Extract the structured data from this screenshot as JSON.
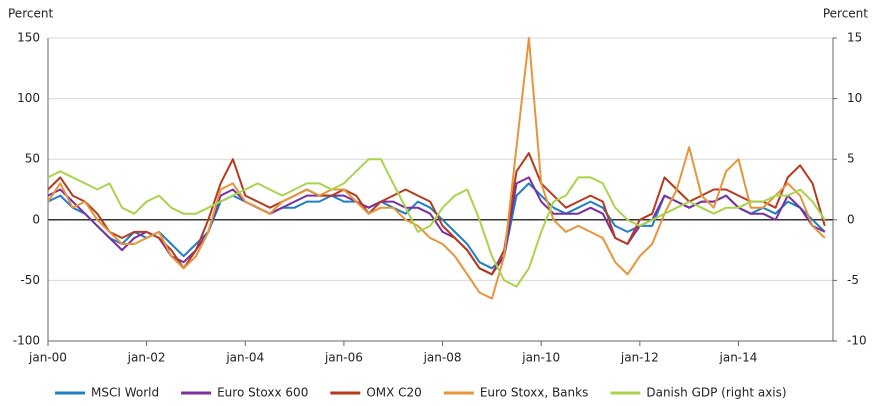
{
  "chart_data": {
    "type": "line",
    "y_label": "Percent",
    "y2_label": "Percent",
    "x": [
      "2000-01",
      "2000-04",
      "2000-07",
      "2000-10",
      "2001-01",
      "2001-04",
      "2001-07",
      "2001-10",
      "2002-01",
      "2002-04",
      "2002-07",
      "2002-10",
      "2003-01",
      "2003-04",
      "2003-07",
      "2003-10",
      "2004-01",
      "2004-04",
      "2004-07",
      "2004-10",
      "2005-01",
      "2005-04",
      "2005-07",
      "2005-10",
      "2006-01",
      "2006-04",
      "2006-07",
      "2006-10",
      "2007-01",
      "2007-04",
      "2007-07",
      "2007-10",
      "2008-01",
      "2008-04",
      "2008-07",
      "2008-10",
      "2009-01",
      "2009-04",
      "2009-07",
      "2009-10",
      "2010-01",
      "2010-04",
      "2010-07",
      "2010-10",
      "2011-01",
      "2011-04",
      "2011-07",
      "2011-10",
      "2012-01",
      "2012-04",
      "2012-07",
      "2012-10",
      "2013-01",
      "2013-04",
      "2013-07",
      "2013-10",
      "2014-01",
      "2014-04",
      "2014-07",
      "2014-10",
      "2015-01",
      "2015-04",
      "2015-07",
      "2015-10"
    ],
    "xlim": [
      "2000-01",
      "2015-12"
    ],
    "xticks": [
      {
        "value": "2000-01",
        "label": "jan-00"
      },
      {
        "value": "2002-01",
        "label": "jan-02"
      },
      {
        "value": "2004-01",
        "label": "jan-04"
      },
      {
        "value": "2006-01",
        "label": "jan-06"
      },
      {
        "value": "2008-01",
        "label": "jan-08"
      },
      {
        "value": "2010-01",
        "label": "jan-10"
      },
      {
        "value": "2012-01",
        "label": "jan-12"
      },
      {
        "value": "2014-01",
        "label": "jan-14"
      }
    ],
    "ylim": [
      -100,
      150
    ],
    "yticks": [
      -100,
      -50,
      0,
      50,
      100,
      150
    ],
    "y2lim": [
      -10,
      15
    ],
    "y2ticks": [
      -10,
      -5,
      0,
      5,
      10,
      15
    ],
    "grid": true,
    "legend": "bottom",
    "series": [
      {
        "name": "MSCI World",
        "color": "#1f7fc4",
        "values": [
          15,
          20,
          10,
          5,
          -5,
          -15,
          -20,
          -10,
          -15,
          -10,
          -20,
          -30,
          -20,
          -10,
          15,
          20,
          15,
          10,
          5,
          10,
          10,
          15,
          15,
          20,
          15,
          15,
          10,
          15,
          10,
          5,
          15,
          10,
          0,
          -10,
          -20,
          -35,
          -40,
          -30,
          20,
          30,
          20,
          10,
          5,
          10,
          15,
          10,
          -5,
          -10,
          -5,
          -5,
          20,
          15,
          10,
          15,
          15,
          20,
          10,
          5,
          10,
          5,
          15,
          10,
          0,
          -10
        ]
      },
      {
        "name": "Euro Stoxx 600",
        "color": "#7b2fa0",
        "values": [
          20,
          25,
          15,
          5,
          -5,
          -15,
          -25,
          -15,
          -10,
          -15,
          -30,
          -35,
          -25,
          -10,
          20,
          25,
          15,
          10,
          5,
          10,
          15,
          20,
          20,
          20,
          20,
          15,
          10,
          15,
          15,
          10,
          10,
          5,
          -10,
          -15,
          -25,
          -40,
          -45,
          -30,
          30,
          35,
          15,
          5,
          5,
          5,
          10,
          5,
          -15,
          -20,
          -5,
          0,
          20,
          15,
          10,
          15,
          15,
          20,
          10,
          5,
          5,
          0,
          20,
          10,
          -5,
          -10
        ]
      },
      {
        "name": "OMX C20",
        "color": "#b83a1e",
        "values": [
          25,
          35,
          20,
          15,
          5,
          -10,
          -15,
          -10,
          -10,
          -15,
          -25,
          -40,
          -25,
          0,
          30,
          50,
          20,
          15,
          10,
          15,
          20,
          25,
          20,
          20,
          25,
          20,
          5,
          15,
          20,
          25,
          20,
          15,
          -5,
          -15,
          -25,
          -40,
          -45,
          -25,
          40,
          55,
          30,
          20,
          10,
          15,
          20,
          15,
          -15,
          -20,
          0,
          5,
          35,
          25,
          15,
          20,
          25,
          25,
          20,
          15,
          15,
          10,
          35,
          45,
          30,
          -5
        ]
      },
      {
        "name": "Euro Stoxx, Banks",
        "color": "#e8943a",
        "values": [
          15,
          30,
          10,
          15,
          0,
          -10,
          -20,
          -20,
          -15,
          -10,
          -30,
          -40,
          -30,
          -10,
          25,
          30,
          15,
          10,
          5,
          15,
          20,
          25,
          20,
          25,
          25,
          15,
          5,
          10,
          10,
          0,
          -5,
          -15,
          -20,
          -30,
          -45,
          -60,
          -65,
          -30,
          60,
          150,
          30,
          0,
          -10,
          -5,
          -10,
          -15,
          -35,
          -45,
          -30,
          -20,
          5,
          25,
          60,
          20,
          10,
          40,
          50,
          10,
          10,
          20,
          30,
          20,
          -5,
          -15
        ]
      },
      {
        "name": "Danish GDP (right axis)",
        "color": "#a8d44c",
        "axis": "y2",
        "values": [
          3.5,
          4,
          3.5,
          3,
          2.5,
          3,
          1,
          0.5,
          1.5,
          2,
          1,
          0.5,
          0.5,
          1,
          1.5,
          2,
          2.5,
          3,
          2.5,
          2,
          2.5,
          3,
          3,
          2.5,
          3,
          4,
          5,
          5,
          3,
          1,
          -1,
          -0.5,
          1,
          2,
          2.5,
          0,
          -3,
          -5,
          -5.5,
          -4,
          -1,
          1.5,
          2,
          3.5,
          3.5,
          3,
          1,
          0,
          -0.5,
          0,
          0.5,
          1,
          1.5,
          1,
          0.5,
          1,
          1,
          1.5,
          1.5,
          2,
          2,
          2.5,
          1.5,
          0
        ]
      }
    ]
  }
}
